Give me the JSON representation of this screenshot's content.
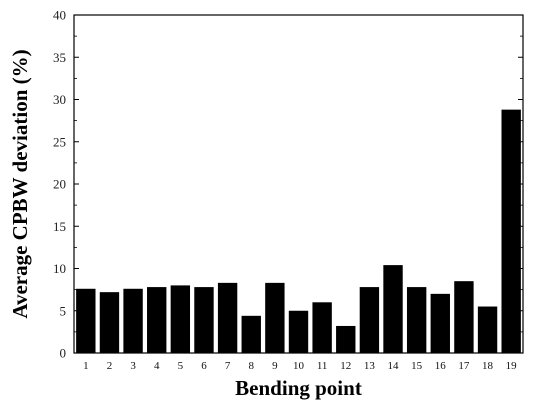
{
  "chart_data": {
    "type": "bar",
    "categories": [
      "1",
      "2",
      "3",
      "4",
      "5",
      "6",
      "7",
      "8",
      "9",
      "10",
      "11",
      "12",
      "13",
      "14",
      "15",
      "16",
      "17",
      "18",
      "19"
    ],
    "values": [
      7.6,
      7.2,
      7.6,
      7.8,
      8.0,
      7.8,
      8.3,
      4.4,
      8.3,
      5.0,
      6.0,
      3.2,
      7.8,
      10.4,
      7.8,
      7.0,
      8.5,
      5.5,
      28.8
    ],
    "title": "",
    "xlabel": "Bending point",
    "ylabel": "Average CPBW deviation (%)",
    "ylim": [
      0,
      40
    ],
    "yticks": [
      "0",
      "5",
      "10",
      "15",
      "20",
      "25",
      "30",
      "35",
      "40"
    ],
    "grid": false,
    "bar_color": "#000000"
  }
}
